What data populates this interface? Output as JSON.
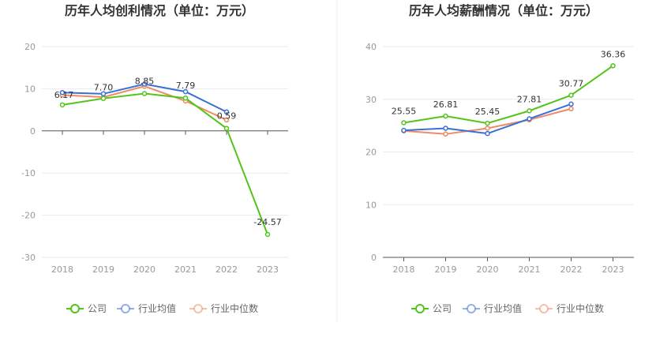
{
  "chart_data": [
    {
      "type": "line",
      "title": "历年人均创利情况（单位：万元）",
      "categories": [
        "2018",
        "2019",
        "2020",
        "2021",
        "2022",
        "2023"
      ],
      "ylim": [
        -30,
        20
      ],
      "yticks": [
        20,
        10,
        0,
        -10,
        -20,
        -30
      ],
      "grid": true,
      "legend_position": "bottom",
      "series": [
        {
          "name": "公司",
          "color": "#52c41a",
          "values": [
            6.17,
            7.7,
            8.85,
            7.79,
            0.59,
            -24.57
          ],
          "labels": [
            "6.17",
            "7.70",
            "8.85",
            "7.79",
            "0.59",
            "-24.57"
          ]
        },
        {
          "name": "行业均值",
          "color": "#3a6fd8",
          "values": [
            9.1,
            8.8,
            11.1,
            9.3,
            4.5,
            null
          ]
        },
        {
          "name": "行业中位数",
          "color": "#ef8a62",
          "values": [
            8.5,
            8.0,
            10.6,
            7.1,
            2.6,
            null
          ]
        }
      ]
    },
    {
      "type": "line",
      "title": "历年人均薪酬情况（单位：万元）",
      "categories": [
        "2018",
        "2019",
        "2020",
        "2021",
        "2022",
        "2023"
      ],
      "ylim": [
        0,
        40
      ],
      "yticks": [
        40,
        30,
        20,
        10,
        0
      ],
      "grid": true,
      "legend_position": "bottom",
      "series": [
        {
          "name": "公司",
          "color": "#52c41a",
          "values": [
            25.55,
            26.81,
            25.45,
            27.81,
            30.77,
            36.36
          ],
          "labels": [
            "25.55",
            "26.81",
            "25.45",
            "27.81",
            "30.77",
            "36.36"
          ]
        },
        {
          "name": "行业均值",
          "color": "#3a6fd8",
          "values": [
            24.1,
            24.5,
            23.5,
            26.3,
            29.1,
            null
          ]
        },
        {
          "name": "行业中位数",
          "color": "#ef8a62",
          "values": [
            24.0,
            23.4,
            24.5,
            26.1,
            28.2,
            null
          ]
        }
      ]
    }
  ]
}
